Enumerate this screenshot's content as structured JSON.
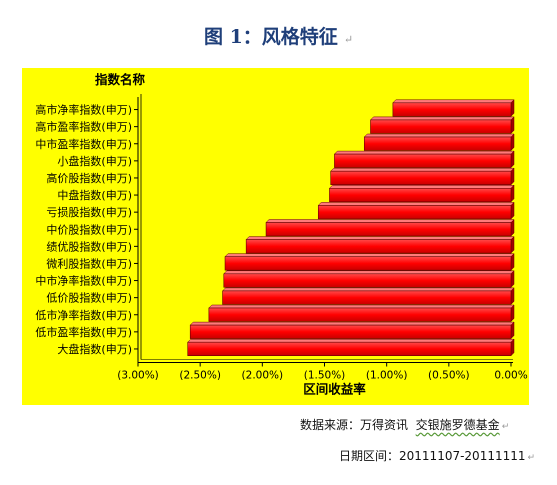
{
  "figure_title": "图 1：风格特征",
  "para_mark": "↵",
  "chart_data": {
    "type": "bar",
    "orientation": "horizontal",
    "legend_title": "指数名称",
    "xlabel": "区间收益率",
    "x_ticks": [
      "(3.00%)",
      "(2.50%)",
      "(2.00%)",
      "(1.50%)",
      "(1.00%)",
      "(0.50%)",
      "0.00%"
    ],
    "xlim": [
      -3.0,
      0.0
    ],
    "unit": "%",
    "bar_color": "#ff0000",
    "background_color": "#ffff00",
    "categories": [
      "高市净率指数(申万)",
      "高市盈率指数(申万)",
      "中市盈率指数(申万)",
      "小盘指数(申万)",
      "高价股指数(申万)",
      "中盘指数(申万)",
      "亏损股指数(申万)",
      "中价股指数(申万)",
      "绩优股指数(申万)",
      "微利股指数(申万)",
      "中市净率指数(申万)",
      "低价股指数(申万)",
      "低市净率指数(申万)",
      "低市盈率指数(申万)",
      "大盘指数(申万)"
    ],
    "values": [
      -0.95,
      -1.13,
      -1.18,
      -1.42,
      -1.45,
      -1.46,
      -1.55,
      -1.97,
      -2.13,
      -2.3,
      -2.31,
      -2.32,
      -2.43,
      -2.58,
      -2.6
    ]
  },
  "source_note": {
    "label": "数据来源：",
    "source1": "万得资讯",
    "source2": "交银施罗德基金"
  },
  "date_note": {
    "label": "日期区间：",
    "range": "20111107-20111111"
  }
}
